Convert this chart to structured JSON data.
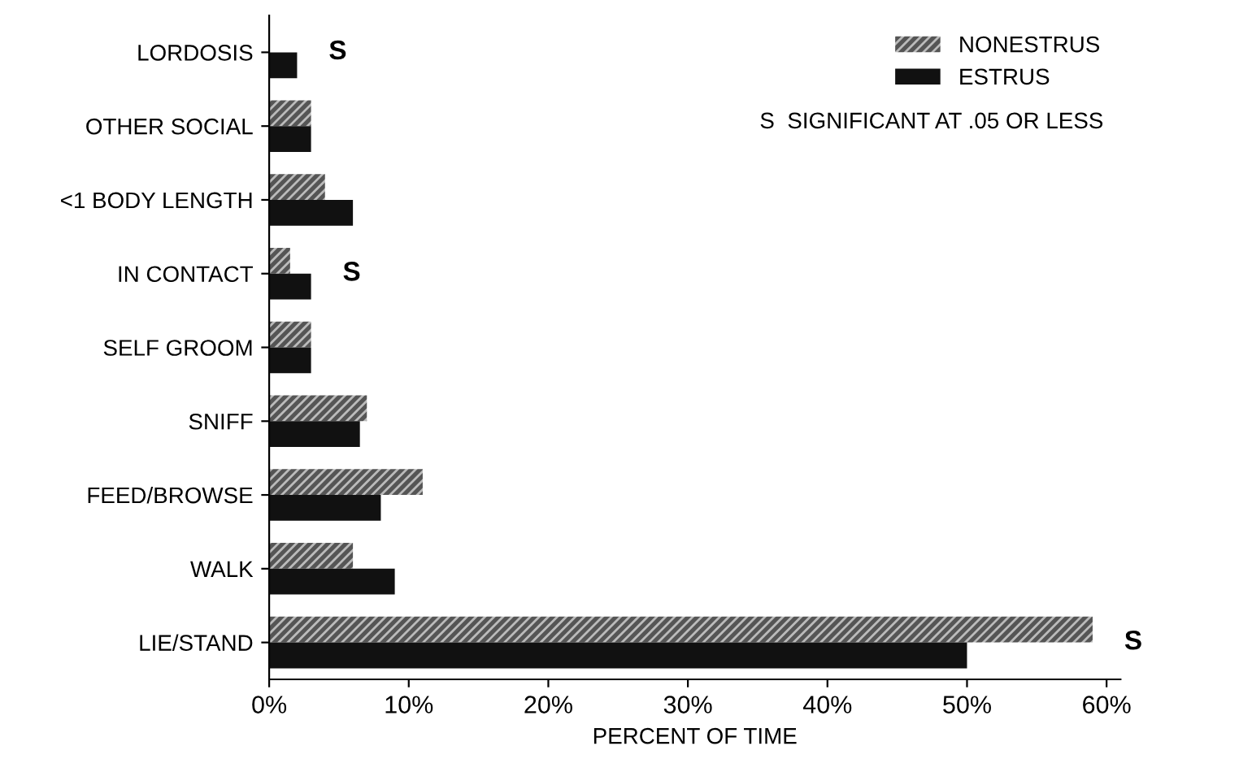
{
  "chart_data": {
    "type": "bar",
    "orientation": "horizontal",
    "xlabel": "PERCENT OF TIME",
    "categories": [
      "LORDOSIS",
      "OTHER SOCIAL",
      "<1 BODY LENGTH",
      "IN CONTACT",
      "SELF GROOM",
      "SNIFF",
      "FEED/BROWSE",
      "WALK",
      "LIE/STAND"
    ],
    "series": [
      {
        "name": "NONESTRUS",
        "color": "#555555",
        "values": [
          0,
          3,
          4,
          1.5,
          3,
          7,
          11,
          6,
          59
        ]
      },
      {
        "name": "ESTRUS",
        "color": "#111111",
        "values": [
          2,
          3,
          6,
          3,
          3,
          6.5,
          8,
          9,
          50
        ]
      }
    ],
    "xlim": [
      0,
      61
    ],
    "xticks": [
      {
        "value": 0,
        "label": "0%"
      },
      {
        "value": 10,
        "label": "10%"
      },
      {
        "value": 20,
        "label": "20%"
      },
      {
        "value": 30,
        "label": "30%"
      },
      {
        "value": 40,
        "label": "40%"
      },
      {
        "value": 50,
        "label": "50%"
      },
      {
        "value": 60,
        "label": "60%"
      }
    ],
    "annotations": [
      {
        "text": "S",
        "x": 2,
        "y": "LORDOSIS"
      },
      {
        "text": "S",
        "x": 3,
        "y": "IN CONTACT"
      },
      {
        "text": "S",
        "x": 59,
        "y": "LIE/STAND"
      },
      "S  SIGNIFICANT AT .05 OR LESS"
    ],
    "legend": "top right",
    "grid": false
  }
}
